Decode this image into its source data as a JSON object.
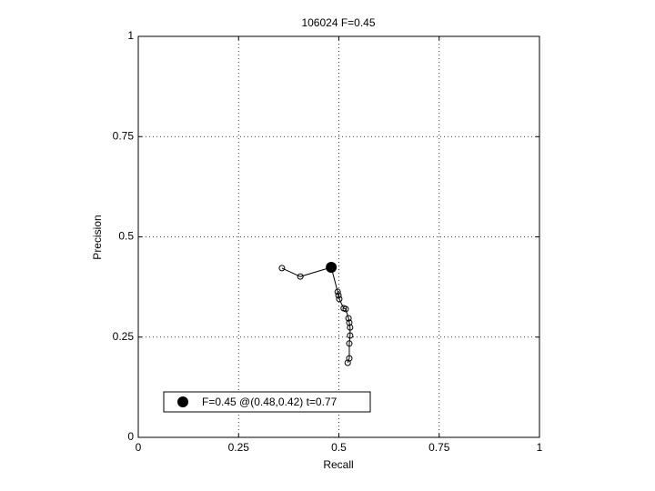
{
  "chart_data": {
    "type": "line",
    "title": "106024 F=0.45",
    "xlabel": "Recall",
    "ylabel": "Precision",
    "xlim": [
      0,
      1
    ],
    "ylim": [
      0,
      1
    ],
    "xticks": [
      0,
      0.25,
      0.5,
      0.75,
      1
    ],
    "yticks": [
      0,
      0.25,
      0.5,
      0.75,
      1
    ],
    "grid": true,
    "series": [
      {
        "color": "#000000",
        "x": [
          0.358,
          0.404,
          0.481,
          0.497,
          0.499,
          0.501,
          0.512,
          0.517,
          0.524,
          0.526,
          0.528,
          0.528,
          0.526,
          0.526,
          0.522
        ],
        "values": [
          0.422,
          0.401,
          0.424,
          0.363,
          0.354,
          0.345,
          0.322,
          0.32,
          0.297,
          0.286,
          0.274,
          0.254,
          0.234,
          0.197,
          0.186
        ]
      }
    ],
    "best": {
      "name": "F=0.45 @(0.48,0.42) t=0.77",
      "x": 0.481,
      "y": 0.424,
      "color": "#000000"
    },
    "legend": "lower left"
  }
}
